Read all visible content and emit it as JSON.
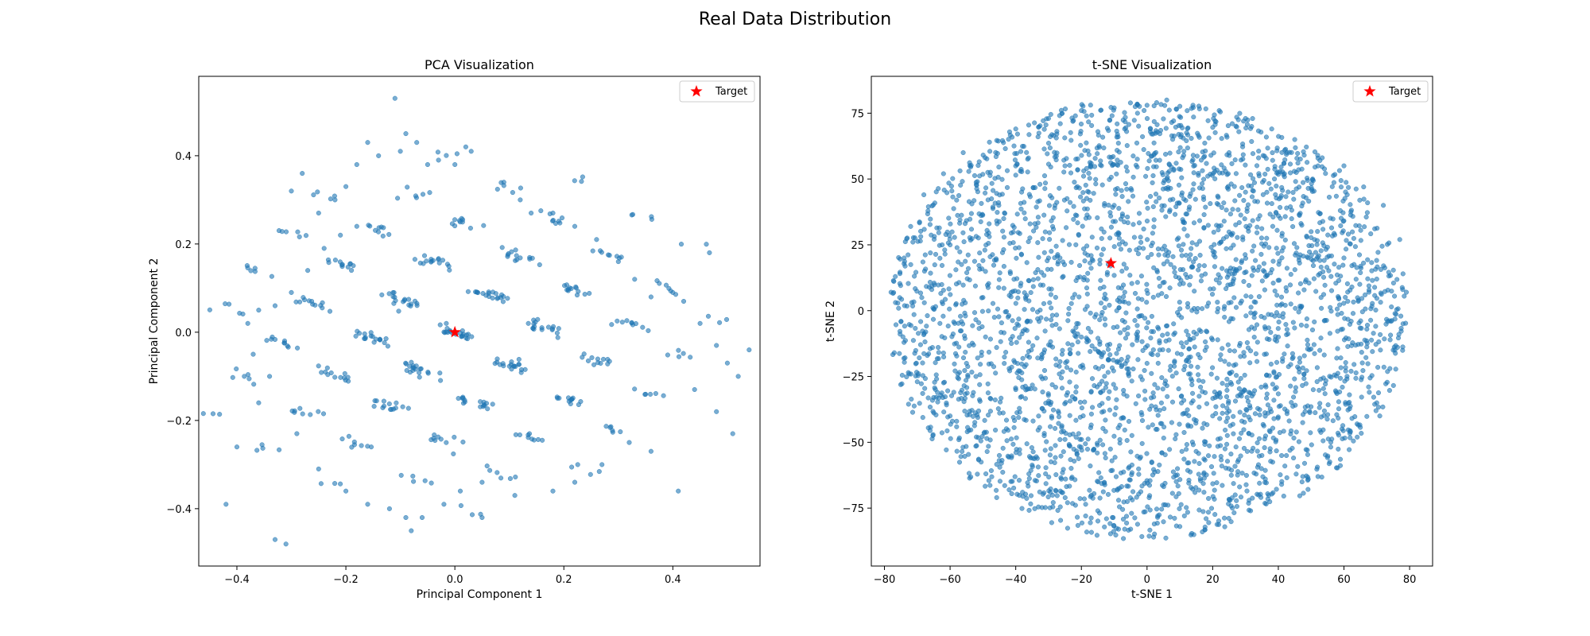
{
  "figure": {
    "suptitle": "Real Data Distribution"
  },
  "chart_data": [
    {
      "type": "scatter",
      "title": "PCA Visualization",
      "xlabel": "Principal Component 1",
      "ylabel": "Principal Component 2",
      "xlim": [
        -0.47,
        0.56
      ],
      "ylim": [
        -0.53,
        0.58
      ],
      "xticks": [
        -0.4,
        -0.2,
        0.0,
        0.2,
        0.4
      ],
      "xtick_labels": [
        "−0.4",
        "−0.2",
        "0.0",
        "0.2",
        "0.4"
      ],
      "yticks": [
        -0.4,
        -0.2,
        0.0,
        0.2,
        0.4
      ],
      "ytick_labels": [
        "−0.4",
        "−0.2",
        "0.0",
        "0.2",
        "0.4"
      ],
      "grid": false,
      "legend": {
        "placement": "upper-right",
        "entries": [
          "Target"
        ]
      },
      "point_color": "#1f77b4",
      "target_color": "#ff0000",
      "target": {
        "label": "Target",
        "x": 0.0,
        "y": 0.0
      },
      "sample_points": [
        [
          -0.42,
          -0.39
        ],
        [
          -0.4,
          -0.26
        ],
        [
          -0.36,
          -0.16
        ],
        [
          -0.33,
          -0.47
        ],
        [
          -0.31,
          -0.48
        ],
        [
          -0.3,
          0.32
        ],
        [
          -0.28,
          0.36
        ],
        [
          -0.25,
          0.27
        ],
        [
          -0.22,
          0.3
        ],
        [
          -0.2,
          0.33
        ],
        [
          -0.18,
          0.38
        ],
        [
          -0.16,
          0.43
        ],
        [
          -0.14,
          0.4
        ],
        [
          -0.11,
          0.53
        ],
        [
          -0.1,
          0.41
        ],
        [
          -0.09,
          0.45
        ],
        [
          -0.08,
          -0.45
        ],
        [
          -0.07,
          0.43
        ],
        [
          -0.05,
          0.38
        ],
        [
          -0.03,
          0.39
        ],
        [
          0.0,
          0.38
        ],
        [
          0.02,
          0.42
        ],
        [
          0.03,
          0.41
        ],
        [
          0.05,
          -0.42
        ],
        [
          0.09,
          0.34
        ],
        [
          0.12,
          0.3
        ],
        [
          0.14,
          0.27
        ],
        [
          0.18,
          0.27
        ],
        [
          0.22,
          0.24
        ],
        [
          0.26,
          0.21
        ],
        [
          0.3,
          0.16
        ],
        [
          0.33,
          0.12
        ],
        [
          0.36,
          0.08
        ],
        [
          0.4,
          0.09
        ],
        [
          0.42,
          0.07
        ],
        [
          0.45,
          0.02
        ],
        [
          0.48,
          -0.03
        ],
        [
          0.5,
          -0.07
        ],
        [
          0.52,
          -0.1
        ],
        [
          0.54,
          -0.04
        ],
        [
          0.51,
          -0.23
        ],
        [
          0.48,
          -0.18
        ],
        [
          0.44,
          -0.13
        ],
        [
          0.41,
          -0.36
        ],
        [
          0.36,
          -0.27
        ],
        [
          0.32,
          -0.25
        ],
        [
          0.27,
          -0.3
        ],
        [
          0.22,
          -0.34
        ],
        [
          0.18,
          -0.36
        ],
        [
          0.11,
          -0.37
        ],
        [
          0.05,
          -0.34
        ],
        [
          0.01,
          -0.36
        ],
        [
          -0.02,
          -0.39
        ],
        [
          -0.06,
          -0.42
        ],
        [
          -0.09,
          -0.42
        ],
        [
          -0.12,
          -0.4
        ],
        [
          -0.16,
          -0.39
        ],
        [
          -0.2,
          -0.36
        ],
        [
          -0.25,
          -0.31
        ],
        [
          -0.29,
          -0.23
        ],
        [
          -0.34,
          -0.1
        ],
        [
          -0.37,
          -0.05
        ],
        [
          -0.38,
          0.02
        ],
        [
          -0.36,
          0.05
        ],
        [
          -0.33,
          0.06
        ],
        [
          -0.3,
          0.09
        ],
        [
          -0.27,
          0.14
        ],
        [
          -0.24,
          0.19
        ],
        [
          -0.21,
          0.22
        ],
        [
          -0.18,
          0.24
        ]
      ]
    },
    {
      "type": "scatter",
      "title": "t-SNE Visualization",
      "xlabel": "t-SNE 1",
      "ylabel": "t-SNE 2",
      "xlim": [
        -84,
        87
      ],
      "ylim": [
        -97,
        89
      ],
      "xticks": [
        -80,
        -60,
        -40,
        -20,
        0,
        20,
        40,
        60,
        80
      ],
      "xtick_labels": [
        "−80",
        "−60",
        "−40",
        "−20",
        "0",
        "20",
        "40",
        "60",
        "80"
      ],
      "yticks": [
        -75,
        -50,
        -25,
        0,
        25,
        50,
        75
      ],
      "ytick_labels": [
        "−75",
        "−50",
        "−25",
        "0",
        "25",
        "50",
        "75"
      ],
      "grid": false,
      "legend": {
        "placement": "upper-right",
        "entries": [
          "Target"
        ]
      },
      "point_color": "#1f77b4",
      "target_color": "#ff0000",
      "target": {
        "label": "Target",
        "x": -11,
        "y": 18
      },
      "sample_points": [
        [
          -78,
          7
        ],
        [
          -77,
          -16
        ],
        [
          -74,
          20
        ],
        [
          -72,
          32
        ],
        [
          -70,
          -27
        ],
        [
          -68,
          44
        ],
        [
          -65,
          -33
        ],
        [
          -62,
          52
        ],
        [
          -60,
          -40
        ],
        [
          -56,
          60
        ],
        [
          -52,
          -48
        ],
        [
          -48,
          64
        ],
        [
          -45,
          -55
        ],
        [
          -40,
          69
        ],
        [
          -36,
          -62
        ],
        [
          -30,
          73
        ],
        [
          -26,
          -69
        ],
        [
          -20,
          76
        ],
        [
          -15,
          -76
        ],
        [
          -10,
          77
        ],
        [
          -5,
          -83
        ],
        [
          0,
          78
        ],
        [
          2,
          -86
        ],
        [
          6,
          80
        ],
        [
          10,
          -82
        ],
        [
          14,
          78
        ],
        [
          18,
          -79
        ],
        [
          22,
          76
        ],
        [
          26,
          -75
        ],
        [
          30,
          73
        ],
        [
          34,
          -70
        ],
        [
          38,
          69
        ],
        [
          41,
          -66
        ],
        [
          45,
          65
        ],
        [
          48,
          -58
        ],
        [
          52,
          59
        ],
        [
          56,
          -50
        ],
        [
          60,
          55
        ],
        [
          64,
          -43
        ],
        [
          66,
          47
        ],
        [
          70,
          -35
        ],
        [
          72,
          40
        ],
        [
          74,
          -22
        ],
        [
          77,
          27
        ],
        [
          78,
          14
        ],
        [
          79,
          7
        ],
        [
          78,
          -5
        ],
        [
          75,
          -15
        ],
        [
          70,
          12
        ],
        [
          60,
          20
        ],
        [
          50,
          30
        ],
        [
          40,
          -10
        ],
        [
          30,
          45
        ],
        [
          20,
          -40
        ],
        [
          10,
          10
        ],
        [
          0,
          -20
        ],
        [
          -10,
          40
        ],
        [
          -20,
          -10
        ],
        [
          -30,
          20
        ],
        [
          -40,
          -30
        ],
        [
          -50,
          5
        ],
        [
          -60,
          25
        ],
        [
          -55,
          -20
        ],
        [
          -25,
          55
        ],
        [
          25,
          60
        ],
        [
          35,
          -55
        ]
      ]
    }
  ]
}
